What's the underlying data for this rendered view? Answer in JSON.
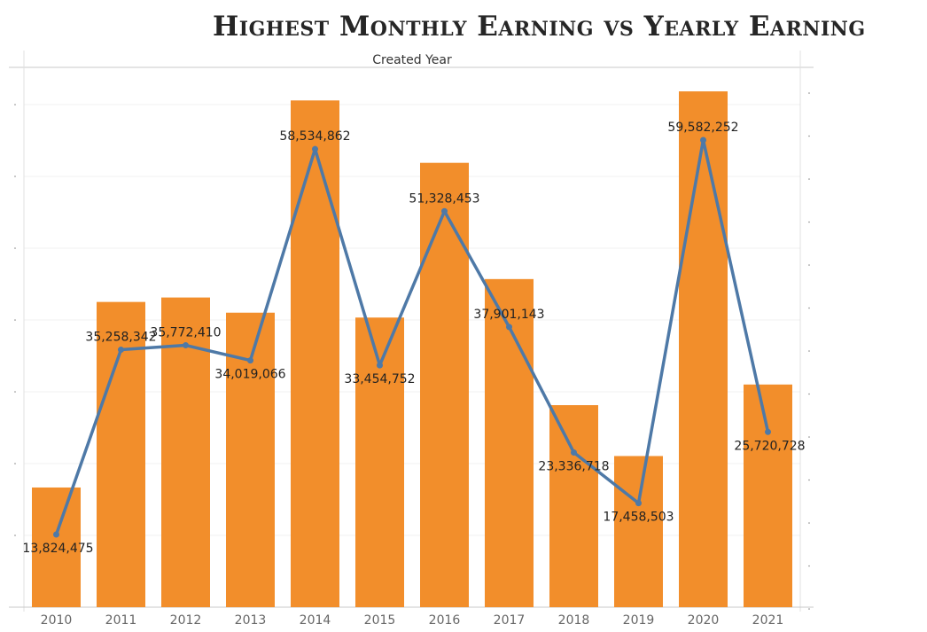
{
  "title": "Highest Monthly Earning vs Yearly Earning",
  "chart_data": {
    "type": "bar",
    "xlabel": "Created Year",
    "categories": [
      "2010",
      "2011",
      "2012",
      "2013",
      "2014",
      "2015",
      "2016",
      "2017",
      "2018",
      "2019",
      "2020",
      "2021"
    ],
    "bar_series": {
      "values": [
        13824475,
        35258342,
        35772410,
        34019066,
        58534862,
        33454752,
        51328453,
        37901143,
        23336718,
        17458503,
        59582252,
        25720728
      ]
    },
    "line_series": {
      "values": [
        13824475,
        35258342,
        35772410,
        34019066,
        58534862,
        33454752,
        51328453,
        37901143,
        23336718,
        17458503,
        59582252,
        25720728
      ]
    },
    "data_labels": [
      "13,824,475",
      "35,258,342",
      "35,772,410",
      "34,019,066",
      "58,534,862",
      "33,454,752",
      "51,328,453",
      "37,901,143",
      "23,336,718",
      "17,458,503",
      "59,582,252",
      "25,720,728"
    ],
    "grid": true,
    "colors": {
      "bar": "#f28e2b",
      "line": "#4e79a7"
    }
  }
}
